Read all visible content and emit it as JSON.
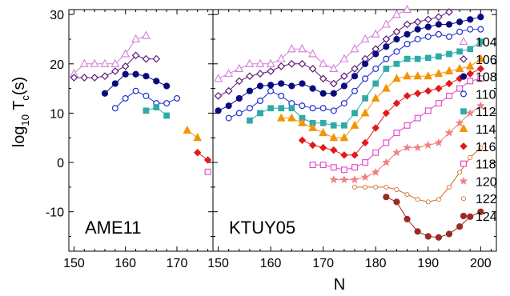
{
  "chart_data": {
    "type": "line",
    "ylabel": "log10 Tc(s)",
    "ylabel_parts": {
      "base": "log",
      "sub10": "10",
      "T": " T",
      "subc": "c",
      "tail": "(s)"
    },
    "xlabel": "N",
    "ylim": [
      -18,
      31
    ],
    "y_ticks": [
      -10,
      0,
      10,
      20,
      30
    ],
    "panels": [
      {
        "label": "AME11",
        "xlim": [
          149,
          177
        ],
        "x_ticks": [
          150,
          160,
          170
        ]
      },
      {
        "label": "KTUY05",
        "xlim": [
          149,
          203
        ],
        "x_ticks": [
          150,
          160,
          170,
          180,
          190,
          200
        ]
      }
    ],
    "series": [
      {
        "name": "104",
        "color": "#d47fd8",
        "marker": "triangle-open",
        "line": true,
        "AME11": [
          [
            150,
            18
          ],
          [
            152,
            20
          ],
          [
            154,
            20
          ],
          [
            156,
            20
          ],
          [
            158,
            20
          ],
          [
            160,
            22
          ],
          [
            162,
            25
          ],
          [
            164,
            25.7
          ]
        ],
        "KTUY05": [
          [
            150,
            17
          ],
          [
            152,
            18
          ],
          [
            154,
            19
          ],
          [
            156,
            20
          ],
          [
            158,
            20
          ],
          [
            160,
            20
          ],
          [
            162,
            21
          ],
          [
            164,
            23
          ],
          [
            166,
            23
          ],
          [
            168,
            22
          ],
          [
            170,
            20
          ],
          [
            172,
            19
          ],
          [
            174,
            21
          ],
          [
            176,
            23
          ],
          [
            178,
            25
          ],
          [
            180,
            26
          ],
          [
            182,
            28
          ],
          [
            184,
            30
          ],
          [
            186,
            31
          ]
        ]
      },
      {
        "name": "106",
        "color": "#5a1a7a",
        "marker": "diamond-open",
        "line": true,
        "AME11": [
          [
            150,
            17.2
          ],
          [
            152,
            17.2
          ],
          [
            154,
            17.2
          ],
          [
            156,
            17.5
          ],
          [
            158,
            18.5
          ],
          [
            160,
            19.5
          ],
          [
            162,
            21.7
          ],
          [
            164,
            21
          ],
          [
            166,
            21
          ]
        ],
        "KTUY05": [
          [
            150,
            13.5
          ],
          [
            152,
            14.5
          ],
          [
            154,
            16.5
          ],
          [
            156,
            17.5
          ],
          [
            158,
            18
          ],
          [
            160,
            18.5
          ],
          [
            162,
            19.5
          ],
          [
            164,
            20
          ],
          [
            166,
            20
          ],
          [
            168,
            19
          ],
          [
            170,
            17
          ],
          [
            172,
            16
          ],
          [
            174,
            17.5
          ],
          [
            176,
            19
          ],
          [
            178,
            21
          ],
          [
            180,
            23
          ],
          [
            182,
            25
          ],
          [
            184,
            26.5
          ],
          [
            186,
            28
          ],
          [
            188,
            28.5
          ],
          [
            190,
            29
          ],
          [
            192,
            29.5
          ],
          [
            194,
            30.5
          ]
        ]
      },
      {
        "name": "108",
        "color": "#0a0a80",
        "marker": "circle-filled",
        "line": true,
        "AME11": [
          [
            156,
            14
          ],
          [
            158,
            16
          ],
          [
            160,
            17.9
          ],
          [
            162,
            17.9
          ],
          [
            164,
            17.5
          ],
          [
            166,
            16.5
          ],
          [
            168,
            15.5
          ]
        ],
        "KTUY05": [
          [
            150,
            10.5
          ],
          [
            152,
            11.5
          ],
          [
            154,
            13
          ],
          [
            156,
            14.5
          ],
          [
            158,
            15.5
          ],
          [
            160,
            15.7
          ],
          [
            162,
            16
          ],
          [
            164,
            15.5
          ],
          [
            166,
            16
          ],
          [
            168,
            15
          ],
          [
            170,
            14
          ],
          [
            172,
            14
          ],
          [
            174,
            15.5
          ],
          [
            176,
            17.5
          ],
          [
            178,
            20
          ],
          [
            180,
            22
          ],
          [
            182,
            23.5
          ],
          [
            184,
            25
          ],
          [
            186,
            26
          ],
          [
            188,
            27
          ],
          [
            190,
            27.5
          ],
          [
            192,
            28
          ],
          [
            194,
            28
          ],
          [
            196,
            28.5
          ],
          [
            198,
            29
          ],
          [
            200,
            29.5
          ]
        ]
      },
      {
        "name": "110",
        "color": "#1a2fd0",
        "marker": "circle-open",
        "line": true,
        "AME11": [
          [
            158,
            11
          ],
          [
            160,
            13
          ],
          [
            162,
            14.5
          ],
          [
            164,
            13.5
          ],
          [
            166,
            12
          ],
          [
            168,
            12
          ],
          [
            170,
            13
          ]
        ],
        "KTUY05": [
          [
            152,
            9
          ],
          [
            154,
            10
          ],
          [
            156,
            11
          ],
          [
            158,
            12.5
          ],
          [
            160,
            14.5
          ],
          [
            162,
            13.5
          ],
          [
            164,
            12
          ],
          [
            166,
            11.5
          ],
          [
            168,
            11
          ],
          [
            170,
            11
          ],
          [
            172,
            10.5
          ],
          [
            174,
            12
          ],
          [
            176,
            14.5
          ],
          [
            178,
            17
          ],
          [
            180,
            19
          ],
          [
            182,
            21
          ],
          [
            184,
            22.5
          ],
          [
            186,
            24
          ],
          [
            188,
            25
          ],
          [
            190,
            25.5
          ],
          [
            192,
            26
          ],
          [
            194,
            25.5
          ],
          [
            196,
            26.5
          ],
          [
            198,
            27
          ],
          [
            200,
            27
          ]
        ]
      },
      {
        "name": "112",
        "color": "#2eaaa8",
        "marker": "square-filled",
        "line": true,
        "AME11": [
          [
            164,
            10.5
          ],
          [
            166,
            11.2
          ],
          [
            168,
            9.5
          ]
        ],
        "KTUY05": [
          [
            156,
            8.5
          ],
          [
            158,
            10
          ],
          [
            160,
            11
          ],
          [
            162,
            11
          ],
          [
            164,
            11
          ],
          [
            166,
            9
          ],
          [
            168,
            8
          ],
          [
            170,
            8
          ],
          [
            172,
            7.5
          ],
          [
            174,
            7.5
          ],
          [
            176,
            10
          ],
          [
            178,
            13
          ],
          [
            180,
            16
          ],
          [
            182,
            19
          ],
          [
            184,
            20
          ],
          [
            186,
            21
          ],
          [
            188,
            21
          ],
          [
            190,
            21.2
          ],
          [
            192,
            21.5
          ],
          [
            194,
            22
          ],
          [
            196,
            22.5
          ],
          [
            198,
            23
          ],
          [
            200,
            24.5
          ]
        ]
      },
      {
        "name": "114",
        "color": "#f29500",
        "marker": "triangle-filled",
        "line": true,
        "AME11": [
          [
            172,
            6.5
          ],
          [
            174,
            5
          ]
        ],
        "KTUY05": [
          [
            162,
            9
          ],
          [
            164,
            9
          ],
          [
            166,
            8
          ],
          [
            168,
            7
          ],
          [
            170,
            6
          ],
          [
            172,
            5
          ],
          [
            174,
            5
          ],
          [
            176,
            7.5
          ],
          [
            178,
            10
          ],
          [
            180,
            13
          ],
          [
            182,
            15
          ],
          [
            184,
            17
          ],
          [
            186,
            17.5
          ],
          [
            188,
            17.5
          ],
          [
            190,
            17.5
          ],
          [
            192,
            18
          ],
          [
            194,
            18.5
          ],
          [
            196,
            19
          ],
          [
            198,
            19.5
          ],
          [
            200,
            21
          ]
        ]
      },
      {
        "name": "116",
        "color": "#e31a1c",
        "marker": "diamond-filled",
        "line": true,
        "AME11": [
          [
            174,
            2
          ],
          [
            176,
            0.5
          ]
        ],
        "KTUY05": [
          [
            166,
            4.5
          ],
          [
            168,
            3.5
          ],
          [
            170,
            3
          ],
          [
            172,
            2.5
          ],
          [
            174,
            1.5
          ],
          [
            176,
            1.5
          ],
          [
            178,
            4
          ],
          [
            180,
            7
          ],
          [
            182,
            10
          ],
          [
            184,
            12
          ],
          [
            186,
            13.5
          ],
          [
            188,
            14
          ],
          [
            190,
            14.5
          ],
          [
            192,
            15
          ],
          [
            194,
            16
          ],
          [
            196,
            17
          ],
          [
            198,
            18
          ],
          [
            200,
            19
          ]
        ]
      },
      {
        "name": "118",
        "color": "#e642c8",
        "marker": "square-open",
        "line": true,
        "AME11": [
          [
            176,
            -1.9
          ]
        ],
        "KTUY05": [
          [
            168,
            -0.5
          ],
          [
            170,
            -0.5
          ],
          [
            172,
            -1
          ],
          [
            174,
            -1.5
          ],
          [
            176,
            -1
          ],
          [
            178,
            0
          ],
          [
            180,
            2
          ],
          [
            182,
            4
          ],
          [
            184,
            6
          ],
          [
            186,
            7.5
          ],
          [
            188,
            9
          ],
          [
            190,
            10.5
          ],
          [
            192,
            12
          ],
          [
            194,
            13.5
          ],
          [
            196,
            15
          ],
          [
            198,
            16.5
          ],
          [
            200,
            17
          ]
        ]
      },
      {
        "name": "120",
        "color": "#f08080",
        "marker": "star",
        "line": true,
        "AME11": [],
        "KTUY05": [
          [
            172,
            -3.5
          ],
          [
            174,
            -3.5
          ],
          [
            176,
            -3.5
          ],
          [
            178,
            -3
          ],
          [
            180,
            -2
          ],
          [
            182,
            0
          ],
          [
            184,
            2
          ],
          [
            186,
            3
          ],
          [
            188,
            3
          ],
          [
            190,
            3.5
          ],
          [
            192,
            4
          ],
          [
            194,
            6
          ],
          [
            196,
            8
          ],
          [
            198,
            10
          ],
          [
            200,
            11.5
          ]
        ]
      },
      {
        "name": "122",
        "color": "#d2691e",
        "marker": "circle-dotted",
        "line": true,
        "AME11": [],
        "KTUY05": [
          [
            176,
            -5
          ],
          [
            178,
            -5
          ],
          [
            180,
            -5
          ],
          [
            182,
            -5
          ],
          [
            184,
            -5.5
          ],
          [
            186,
            -6.5
          ],
          [
            188,
            -7.5
          ],
          [
            190,
            -8
          ],
          [
            192,
            -7.5
          ],
          [
            194,
            -5
          ],
          [
            196,
            -2
          ],
          [
            198,
            1
          ],
          [
            200,
            3
          ]
        ]
      },
      {
        "name": "124",
        "color": "#9b2a26",
        "marker": "circle-filled",
        "line": true,
        "AME11": [],
        "KTUY05": [
          [
            182,
            -7
          ],
          [
            184,
            -8
          ],
          [
            186,
            -11.5
          ],
          [
            188,
            -14
          ],
          [
            190,
            -15
          ],
          [
            192,
            -15.2
          ],
          [
            194,
            -14.5
          ],
          [
            196,
            -13
          ],
          [
            198,
            -11
          ],
          [
            200,
            -10
          ]
        ]
      }
    ]
  }
}
